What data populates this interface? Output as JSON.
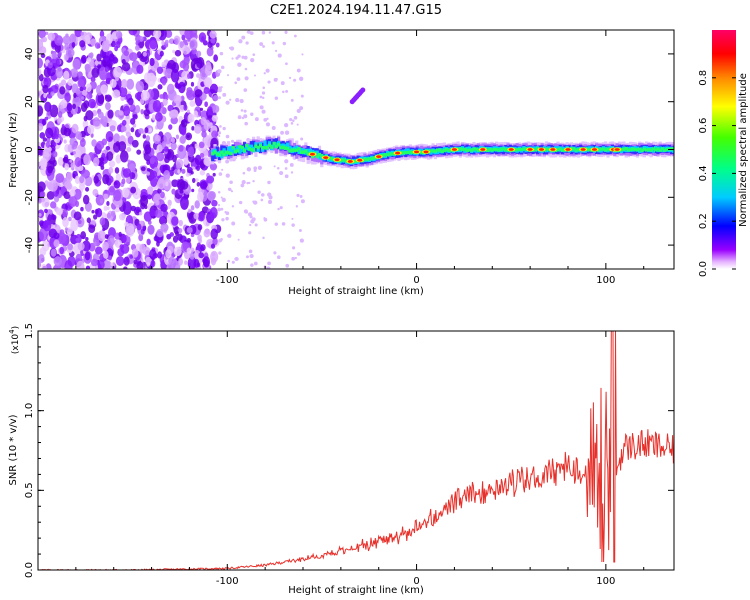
{
  "title": "C2E1.2024.194.11.47.G15",
  "chart_data": [
    {
      "type": "heatmap",
      "xlabel": "Height of straight line (km)",
      "ylabel": "Frequency (Hz)",
      "xlim": [
        -200,
        136
      ],
      "ylim": [
        -50,
        50
      ],
      "x_ticks": [
        -100,
        0,
        100
      ],
      "y_ticks": [
        -40,
        -20,
        0,
        20,
        40
      ],
      "colorbar": {
        "label": "Normalized spectral amplitude",
        "range": [
          0,
          1
        ],
        "ticks": [
          "0.0",
          "0.2",
          "0.4",
          "0.6",
          "0.8"
        ],
        "colors": [
          "#ffffff",
          "#cc33ff",
          "#6600ff",
          "#0000ff",
          "#00ffff",
          "#00ff00",
          "#ffff00",
          "#ff8800",
          "#ff0000",
          "#ff0066"
        ]
      },
      "ridge": {
        "x": [
          -108,
          -95,
          -85,
          -75,
          -65,
          -55,
          -45,
          -35,
          -25,
          -15,
          -5,
          5,
          20,
          40,
          60,
          80,
          90,
          100,
          104,
          110,
          136
        ],
        "freq": [
          -2,
          0,
          1,
          2,
          0,
          -2,
          -4,
          -5,
          -4,
          -2,
          -1,
          -1,
          0,
          0,
          0,
          0,
          0,
          0,
          0,
          0,
          0
        ]
      }
    },
    {
      "type": "line",
      "xlabel": "Height of straight line (km)",
      "ylabel": "SNR (10 * v/v)",
      "y_multiplier": "(x10^4)",
      "xlim": [
        -200,
        136
      ],
      "ylim": [
        0,
        1.5
      ],
      "x_ticks": [
        -100,
        0,
        100
      ],
      "y_ticks": [
        "0.0",
        "0.5",
        "1.0",
        "1.5"
      ],
      "color": "#e8302a",
      "x": [
        -200,
        -150,
        -100,
        -80,
        -60,
        -40,
        -20,
        0,
        20,
        40,
        60,
        70,
        80,
        85,
        90,
        95,
        100,
        105,
        108,
        110,
        120,
        130,
        136
      ],
      "values": [
        0.0,
        0.0,
        0.01,
        0.03,
        0.07,
        0.12,
        0.18,
        0.26,
        0.42,
        0.52,
        0.57,
        0.6,
        0.65,
        0.63,
        0.6,
        0.55,
        0.6,
        0.6,
        0.72,
        0.77,
        0.79,
        0.77,
        0.75
      ],
      "oscillation": {
        "x_start": 88,
        "x_end": 106,
        "max": 1.5,
        "min": 0.05
      }
    }
  ]
}
